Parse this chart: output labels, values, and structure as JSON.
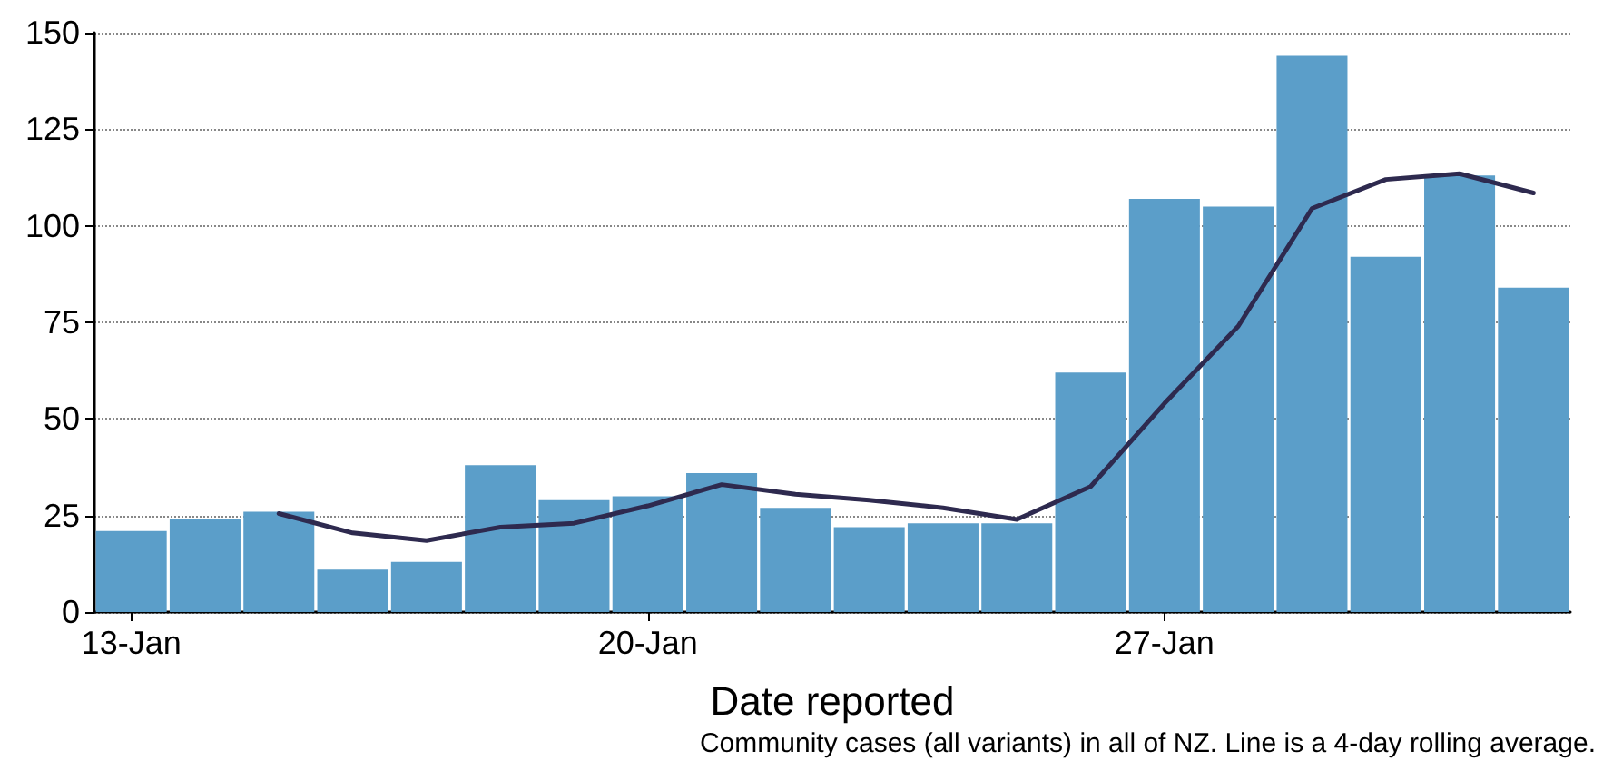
{
  "chart_data": {
    "type": "bar",
    "xlabel": "Date reported",
    "categories": [
      "13-Jan",
      null,
      null,
      null,
      null,
      null,
      null,
      "20-Jan",
      null,
      null,
      null,
      null,
      null,
      null,
      "27-Jan",
      null,
      null,
      null,
      null,
      null
    ],
    "series": [
      {
        "color": "#5b9ec9",
        "values": [
          21,
          24,
          26,
          11,
          13,
          38,
          29,
          30,
          36,
          27,
          22,
          23,
          23,
          62,
          107,
          105,
          144,
          92,
          113,
          84
        ]
      },
      {
        "type": "line",
        "color": "#2e2a4f",
        "values": [
          null,
          null,
          25.5,
          20.5,
          18.5,
          22,
          23,
          27.5,
          33,
          30.5,
          29,
          27,
          24,
          32.5,
          54,
          74,
          104.5,
          112,
          113.5,
          108.5
        ]
      }
    ],
    "ylim": [
      0,
      150
    ],
    "yticks": [
      0,
      25,
      50,
      75,
      100,
      125,
      150
    ],
    "grid": "y",
    "marker": "none",
    "line_style": "solid",
    "annotations": [
      "Community cases (all variants) in all of NZ. Line is a 4-day rolling average."
    ]
  }
}
